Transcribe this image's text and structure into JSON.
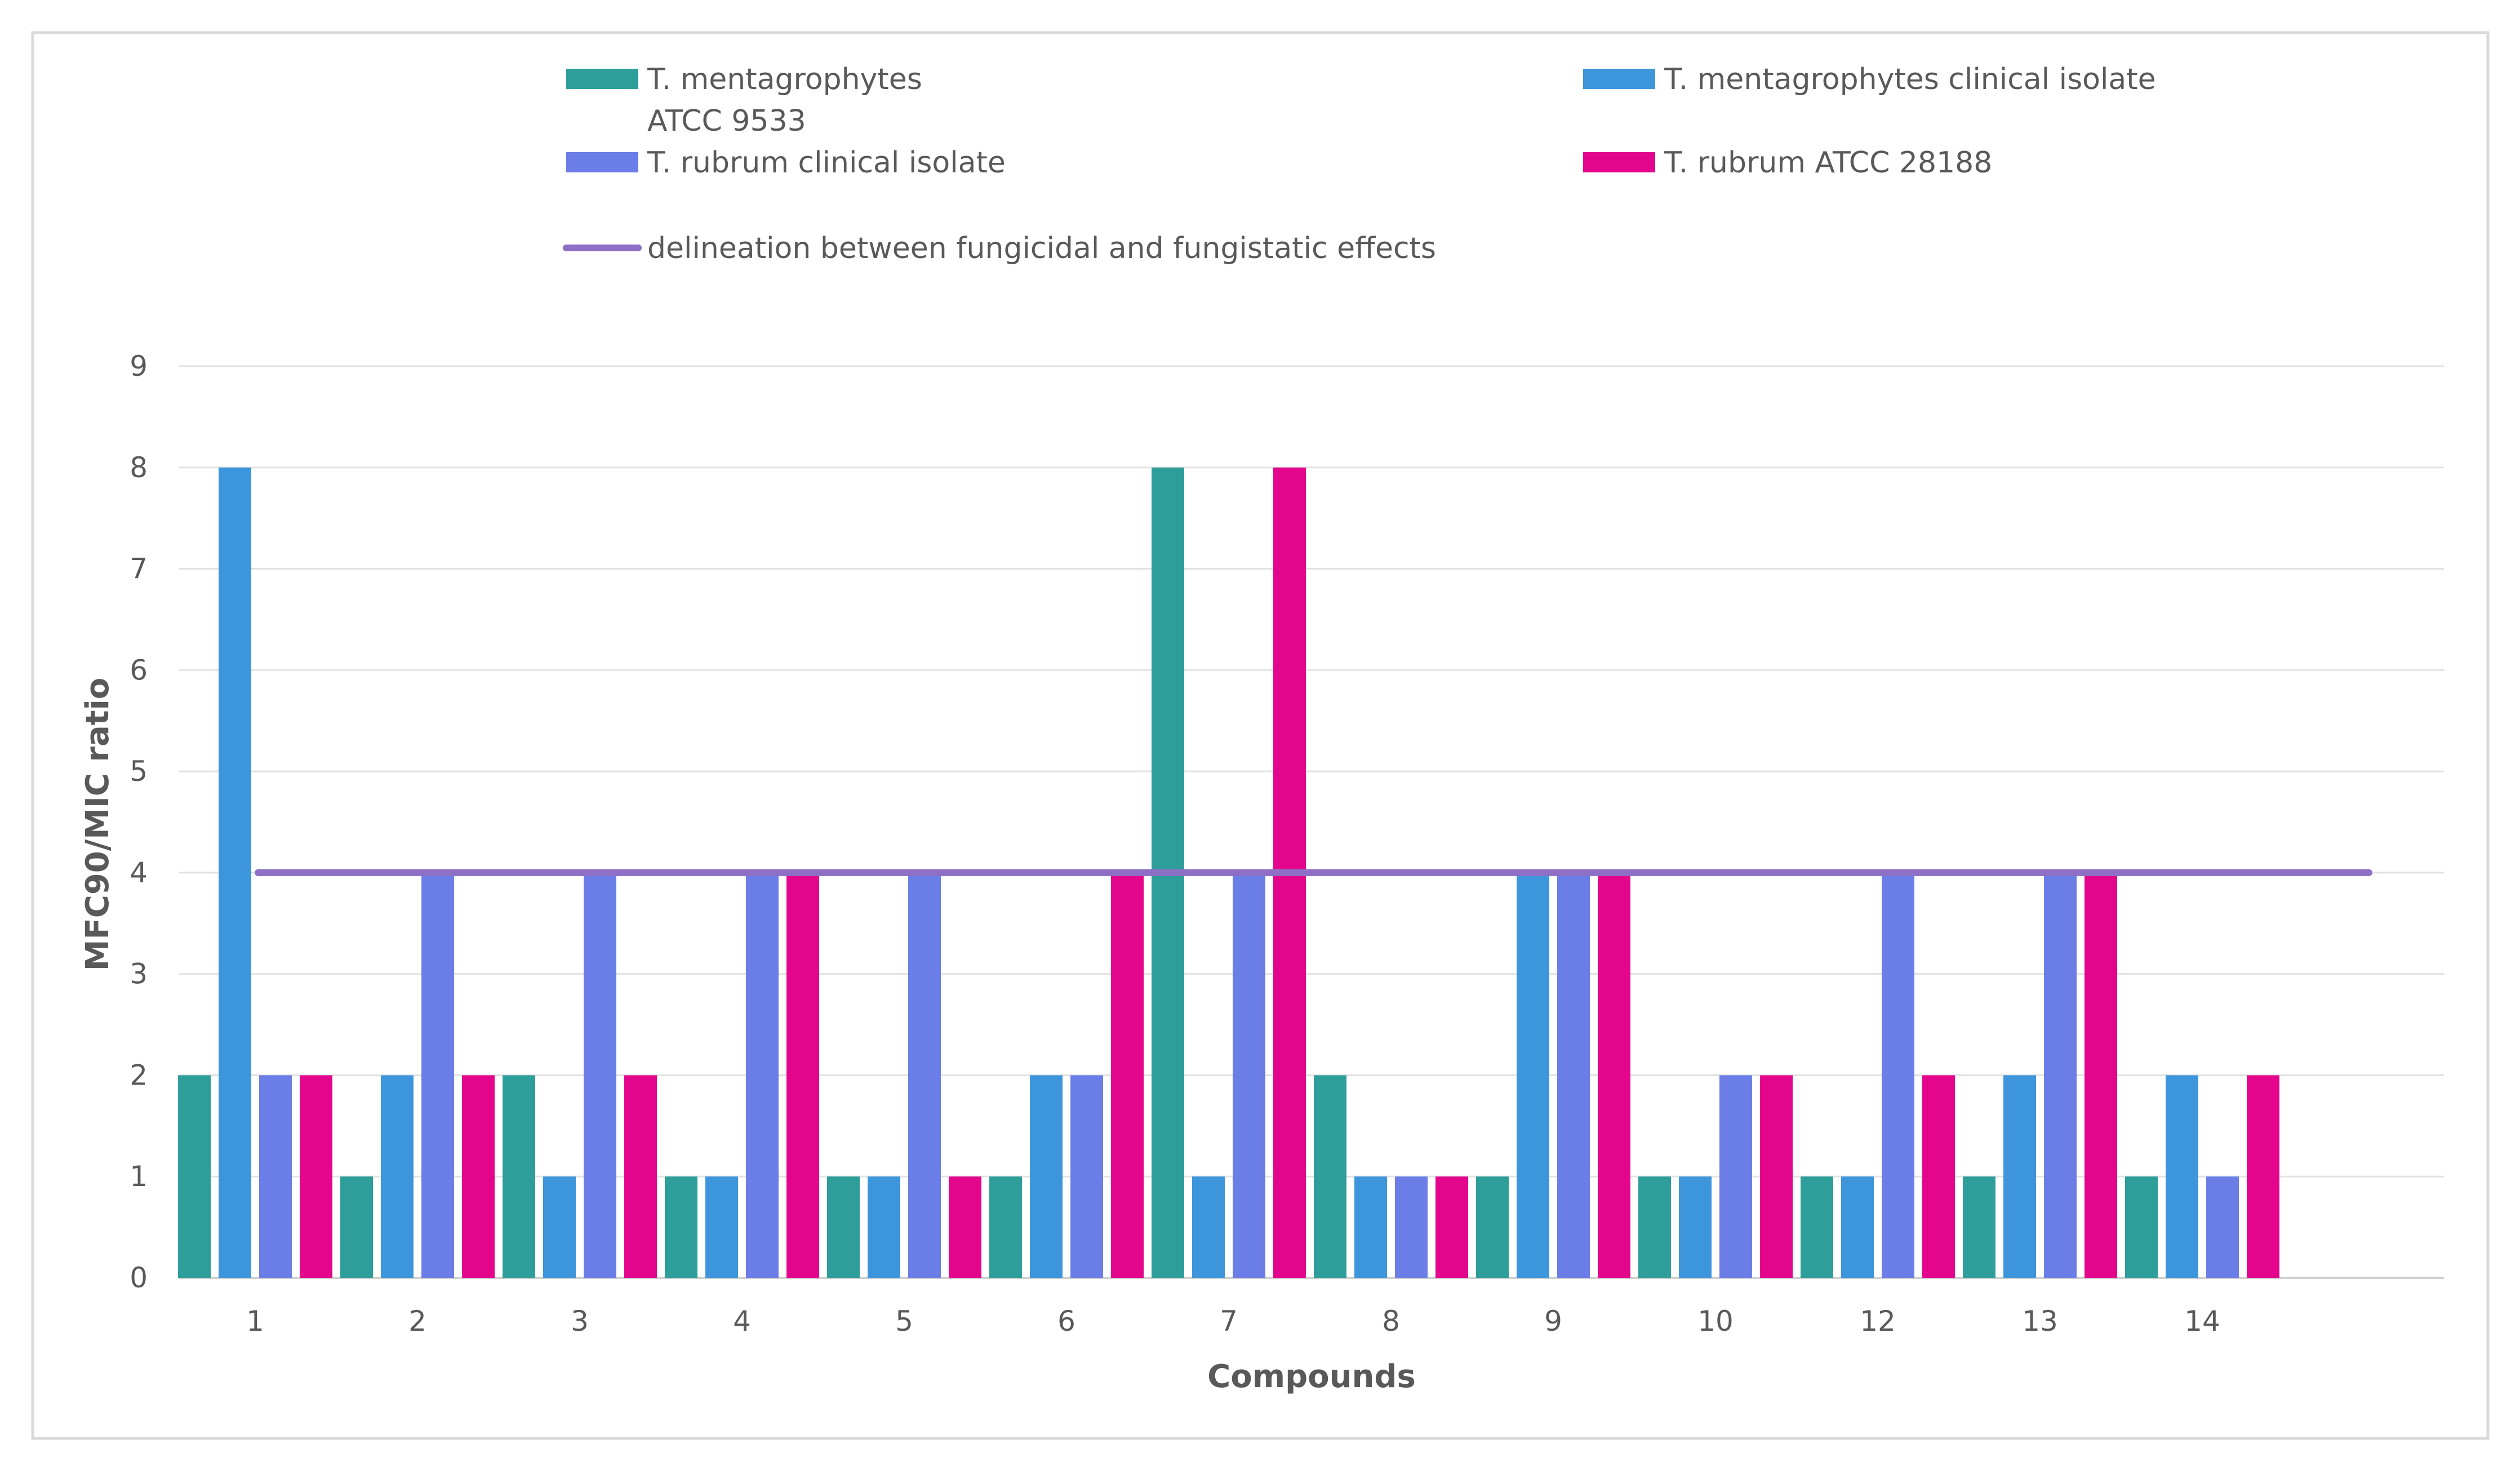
{
  "chart_data": {
    "type": "bar",
    "title": "",
    "xlabel": "Compounds",
    "ylabel": "MFC90/MIC ratio",
    "ylim": [
      0,
      9
    ],
    "yticks": [
      0,
      1,
      2,
      3,
      4,
      5,
      6,
      7,
      8,
      9
    ],
    "grid": true,
    "legend_position": "top",
    "categories": [
      "1",
      "2",
      "3",
      "4",
      "5",
      "6",
      "7",
      "8",
      "9",
      "10",
      "12",
      "13",
      "14"
    ],
    "series": [
      {
        "name": "T. mentagrophytes ATCC 9533",
        "legend_lines": [
          "T. mentagrophytes",
          "ATCC 9533"
        ],
        "color": "#2e9e9a",
        "values": [
          2,
          1,
          2,
          1,
          1,
          1,
          8,
          2,
          1,
          1,
          1,
          1,
          1
        ]
      },
      {
        "name": "T. mentagrophytes clinical isolate",
        "legend_lines": [
          "T. mentagrophytes clinical isolate"
        ],
        "color": "#3d96dc",
        "values": [
          8,
          2,
          1,
          1,
          1,
          2,
          1,
          1,
          4,
          1,
          1,
          2,
          2
        ]
      },
      {
        "name": "T. rubrum clinical isolate",
        "legend_lines": [
          "T. rubrum clinical isolate"
        ],
        "color": "#6b7ee8",
        "values": [
          2,
          4,
          4,
          4,
          4,
          2,
          4,
          1,
          4,
          2,
          4,
          4,
          1
        ]
      },
      {
        "name": "T. rubrum ATCC 28188",
        "legend_lines": [
          "T. rubrum ATCC 28188"
        ],
        "color": "#e3068c",
        "values": [
          2,
          2,
          2,
          4,
          1,
          4,
          8,
          1,
          4,
          2,
          2,
          4,
          2
        ]
      }
    ],
    "reference_line": {
      "name": "delineation between fungicidal and fungistatic effects",
      "value": 4,
      "color": "#8e6fc6"
    }
  }
}
